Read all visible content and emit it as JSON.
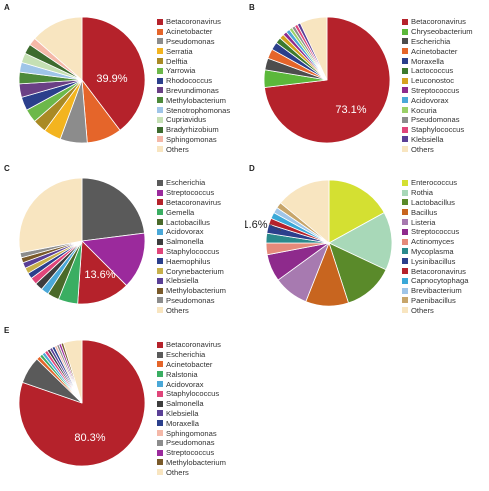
{
  "watermark": "",
  "chart_data": [
    {
      "panel": "A",
      "type": "pie",
      "label_text": "39.9%",
      "slices": [
        {
          "name": "Betacoronavirus",
          "value": 39.9,
          "color": "#b5222b"
        },
        {
          "name": "Acinetobacter",
          "value": 9.0,
          "color": "#e5652a"
        },
        {
          "name": "Pseudomonas",
          "value": 7.0,
          "color": "#8c8c8c"
        },
        {
          "name": "Serratia",
          "value": 4.5,
          "color": "#f3b41f"
        },
        {
          "name": "Delftia",
          "value": 3.5,
          "color": "#a98a24"
        },
        {
          "name": "Yarrowia",
          "value": 3.5,
          "color": "#6cb84a"
        },
        {
          "name": "Rhodococcus",
          "value": 3.5,
          "color": "#2b3f8c"
        },
        {
          "name": "Brevundimonas",
          "value": 3.5,
          "color": "#6a3f85"
        },
        {
          "name": "Methylobacterium",
          "value": 3.0,
          "color": "#4d8a3a"
        },
        {
          "name": "Stenotrophomonas",
          "value": 2.5,
          "color": "#9fc5e8"
        },
        {
          "name": "Cupriavidus",
          "value": 2.5,
          "color": "#c5e0b4"
        },
        {
          "name": "Bradyrhizobium",
          "value": 2.5,
          "color": "#3d6b2e"
        },
        {
          "name": "Sphingomonas",
          "value": 2.0,
          "color": "#f4b8a8"
        },
        {
          "name": "Others",
          "value": 13.6,
          "color": "#f8e5c0"
        }
      ]
    },
    {
      "panel": "B",
      "type": "pie",
      "label_text": "73.1%",
      "slices": [
        {
          "name": "Betacoronavirus",
          "value": 73.1,
          "color": "#b5222b"
        },
        {
          "name": "Chryseobacterium",
          "value": 4.5,
          "color": "#5bb83a"
        },
        {
          "name": "Escherichia",
          "value": 3.0,
          "color": "#4d4d4d"
        },
        {
          "name": "Acinetobacter",
          "value": 2.5,
          "color": "#e5652a"
        },
        {
          "name": "Moraxella",
          "value": 2.0,
          "color": "#2b3f8c"
        },
        {
          "name": "Lactococcus",
          "value": 1.5,
          "color": "#3d7a2e"
        },
        {
          "name": "Leuconostoc",
          "value": 1.2,
          "color": "#d6a21f"
        },
        {
          "name": "Streptococcus",
          "value": 1.0,
          "color": "#8e2a8c"
        },
        {
          "name": "Acidovorax",
          "value": 1.0,
          "color": "#4aa8d8"
        },
        {
          "name": "Kocuria",
          "value": 0.8,
          "color": "#9ad067"
        },
        {
          "name": "Pseudomonas",
          "value": 0.8,
          "color": "#8c8c8c"
        },
        {
          "name": "Staphylococcus",
          "value": 0.8,
          "color": "#e0457a"
        },
        {
          "name": "Klebsiella",
          "value": 0.8,
          "color": "#5a3f96"
        },
        {
          "name": "Others",
          "value": 7.0,
          "color": "#f8e5c0"
        }
      ]
    },
    {
      "panel": "C",
      "type": "pie",
      "label_text": "13.6%",
      "slices": [
        {
          "name": "Escherichia",
          "value": 23.0,
          "color": "#5a5a5a"
        },
        {
          "name": "Streptococcus",
          "value": 14.5,
          "color": "#9b2a9c"
        },
        {
          "name": "Betacoronavirus",
          "value": 13.6,
          "color": "#b5222b"
        },
        {
          "name": "Gemella",
          "value": 5.0,
          "color": "#3aae62"
        },
        {
          "name": "Lactobacillus",
          "value": 3.0,
          "color": "#4a6a2a"
        },
        {
          "name": "Acidovorax",
          "value": 2.0,
          "color": "#4aa8d8"
        },
        {
          "name": "Salmonella",
          "value": 2.0,
          "color": "#3d3d3d"
        },
        {
          "name": "Staphylococcus",
          "value": 1.8,
          "color": "#e0457a"
        },
        {
          "name": "Haemophilus",
          "value": 1.5,
          "color": "#2b3f8c"
        },
        {
          "name": "Corynebacterium",
          "value": 1.5,
          "color": "#c7b04a"
        },
        {
          "name": "Klebsiella",
          "value": 1.5,
          "color": "#5a3f96"
        },
        {
          "name": "Methylobacterium",
          "value": 1.3,
          "color": "#7a5a2a"
        },
        {
          "name": "Pseudomonas",
          "value": 1.3,
          "color": "#8c8c8c"
        },
        {
          "name": "Others",
          "value": 28.0,
          "color": "#f8e5c0"
        }
      ]
    },
    {
      "panel": "D",
      "type": "pie",
      "label_text": "1.6%",
      "slices": [
        {
          "name": "Enterococcus",
          "value": 17.0,
          "color": "#d4e032"
        },
        {
          "name": "Rothia",
          "value": 15.0,
          "color": "#a8d8b8"
        },
        {
          "name": "Lactobacillus",
          "value": 13.0,
          "color": "#5a8a2a"
        },
        {
          "name": "Bacillus",
          "value": 11.0,
          "color": "#c8651f"
        },
        {
          "name": "Listeria",
          "value": 9.0,
          "color": "#a77ab0"
        },
        {
          "name": "Streptococcus",
          "value": 7.0,
          "color": "#8e2a8c"
        },
        {
          "name": "Actinomyces",
          "value": 3.0,
          "color": "#e58a7a"
        },
        {
          "name": "Mycoplasma",
          "value": 2.5,
          "color": "#2a8a8c"
        },
        {
          "name": "Lysinibacillus",
          "value": 2.3,
          "color": "#2b3f8c"
        },
        {
          "name": "Betacoronavirus",
          "value": 1.6,
          "color": "#b5222b"
        },
        {
          "name": "Capnocytophaga",
          "value": 1.6,
          "color": "#3aa8d8"
        },
        {
          "name": "Brevibacterium",
          "value": 1.5,
          "color": "#9fc5e8"
        },
        {
          "name": "Paenibacillus",
          "value": 1.5,
          "color": "#c7a56a"
        },
        {
          "name": "Others",
          "value": 14.0,
          "color": "#f8e5c0"
        }
      ]
    },
    {
      "panel": "E",
      "type": "pie",
      "label_text": "80.3%",
      "slices": [
        {
          "name": "Betacoronavirus",
          "value": 80.3,
          "color": "#b5222b"
        },
        {
          "name": "Escherichia",
          "value": 7.0,
          "color": "#5a5a5a"
        },
        {
          "name": "Acinetobacter",
          "value": 1.0,
          "color": "#e5652a"
        },
        {
          "name": "Ralstonia",
          "value": 0.8,
          "color": "#3aae62"
        },
        {
          "name": "Acidovorax",
          "value": 0.8,
          "color": "#4aa8d8"
        },
        {
          "name": "Staphylococcus",
          "value": 0.8,
          "color": "#e0457a"
        },
        {
          "name": "Salmonella",
          "value": 0.7,
          "color": "#3d3d3d"
        },
        {
          "name": "Klebsiella",
          "value": 0.7,
          "color": "#5a3f96"
        },
        {
          "name": "Moraxella",
          "value": 0.7,
          "color": "#2b3f8c"
        },
        {
          "name": "Sphingomonas",
          "value": 0.6,
          "color": "#f4b8a8"
        },
        {
          "name": "Pseudomonas",
          "value": 0.6,
          "color": "#8c8c8c"
        },
        {
          "name": "Streptococcus",
          "value": 0.6,
          "color": "#9b2a9c"
        },
        {
          "name": "Methylobacterium",
          "value": 0.6,
          "color": "#7a5a2a"
        },
        {
          "name": "Others",
          "value": 4.8,
          "color": "#f8e5c0"
        }
      ]
    }
  ]
}
